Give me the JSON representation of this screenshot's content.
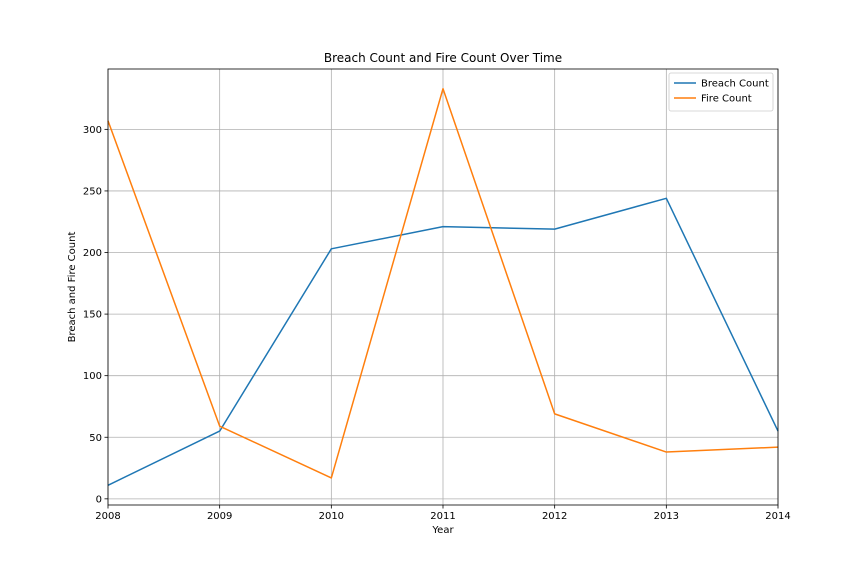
{
  "chart_data": {
    "type": "line",
    "title": "Breach Count and Fire Count Over Time",
    "xlabel": "Year",
    "ylabel": "Breach and Fire Count",
    "x": [
      2008,
      2009,
      2010,
      2011,
      2012,
      2013,
      2014
    ],
    "xlim": [
      2008,
      2014
    ],
    "ylim": [
      -5,
      349
    ],
    "yticks": [
      0,
      50,
      100,
      150,
      200,
      250,
      300
    ],
    "grid": true,
    "legend_position": "top-right",
    "series": [
      {
        "name": "Breach Count",
        "color": "#1f77b4",
        "values": [
          11,
          55,
          203,
          221,
          219,
          244,
          55
        ]
      },
      {
        "name": "Fire Count",
        "color": "#ff7f0e",
        "values": [
          307,
          59,
          17,
          333,
          69,
          38,
          42
        ]
      }
    ]
  }
}
